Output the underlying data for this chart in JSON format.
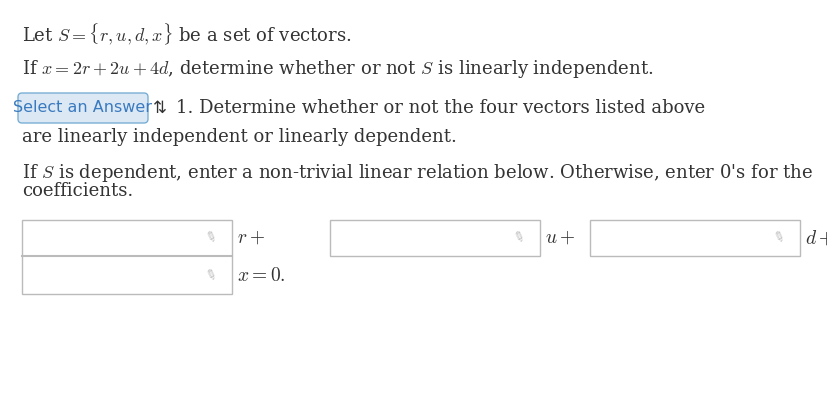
{
  "bg_color": "#ffffff",
  "text_color": "#333333",
  "line1": "Let $S = \\{r, u, d, x\\}$ be a set of vectors.",
  "line2": "If $x = 2r + 2u + 4d$, determine whether or not $S$ is linearly independent.",
  "select_btn_text": "Select an Answer",
  "select_btn_bg": "#dce9f5",
  "select_btn_border": "#7aafd4",
  "select_btn_text_color": "#3a7abf",
  "arrow_symbol": "⇅",
  "step1_text": "1. Determine whether or not the four vectors listed above",
  "step1_cont": "are linearly independent or linearly dependent.",
  "step2_line1": "If $S$ is dependent, enter a non-trivial linear relation below. Otherwise, enter 0's for the",
  "step2_line2": "coefficients.",
  "box_border": "#bbbbbb",
  "box_fill": "#ffffff",
  "pencil_color": "#bbbbbb",
  "label_r": "$r+$",
  "label_u": "$u+$",
  "label_d": "$d+$",
  "label_x": "$x = 0.$",
  "font_size_main": 13.0,
  "font_size_btn": 11.5,
  "font_size_labels": 14.0
}
